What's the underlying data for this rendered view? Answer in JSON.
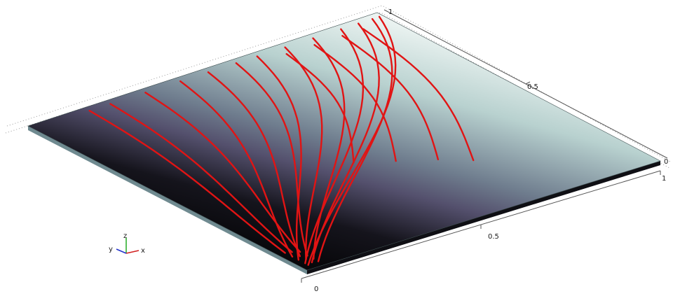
{
  "scene": {
    "x_axis_ticks": [
      "0",
      "0.5",
      "1"
    ],
    "y_axis_ticks": [
      "0",
      "0.5",
      "1"
    ],
    "triad": {
      "x_label": "x",
      "y_label": "y",
      "z_label": "z"
    },
    "colors": {
      "surface_top": "#e6f0ef",
      "surface_mid": "#8fa8aa",
      "surface_purple": "#5f5a7c",
      "surface_bottom": "#0a0a0e",
      "streamline": "#e11414",
      "grid_dots": "#9a9a9a",
      "triad_x": "#d11f1f",
      "triad_y": "#2233cc",
      "triad_z": "#22aa22"
    }
  }
}
